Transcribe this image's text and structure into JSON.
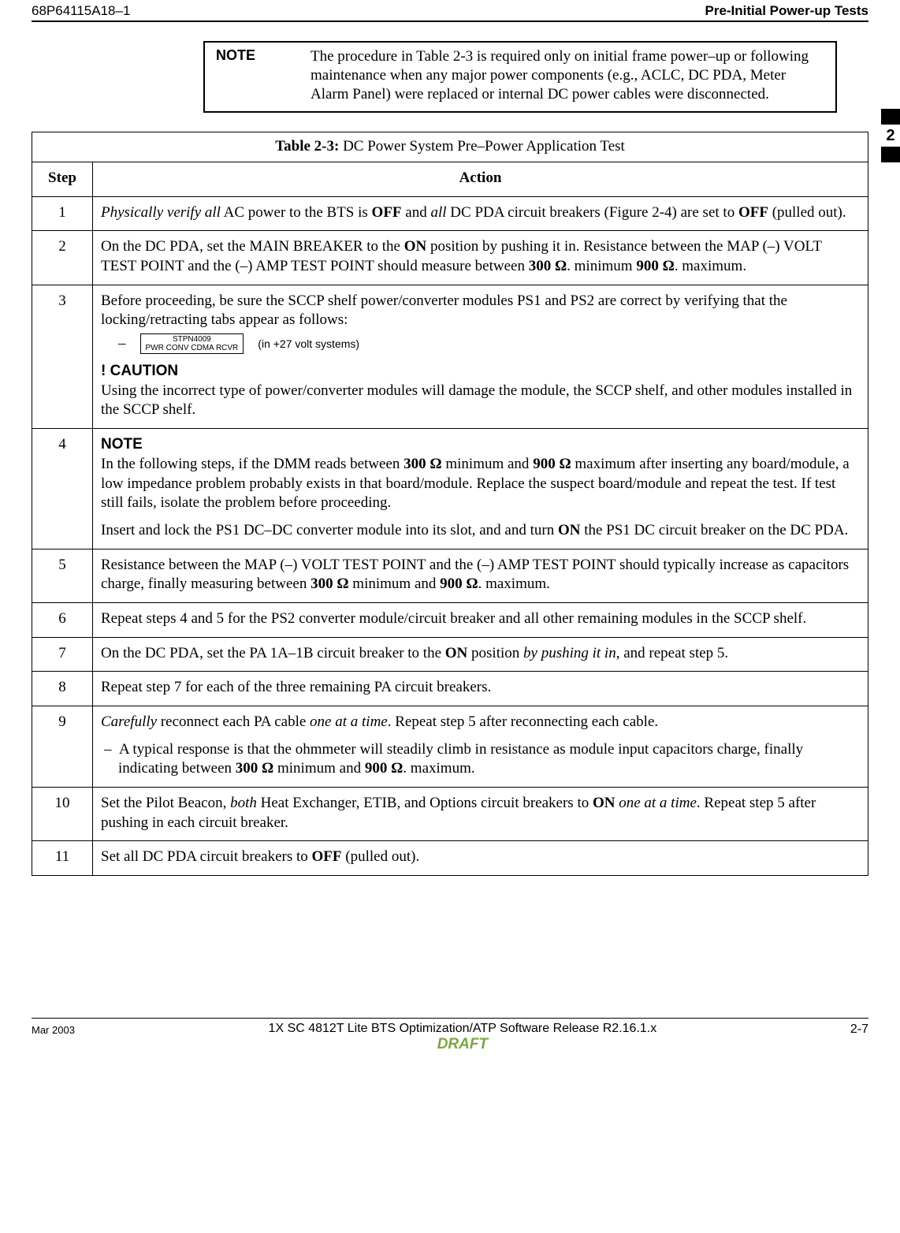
{
  "header": {
    "doc_number": "68P64115A18–1",
    "section_title": "Pre-Initial Power-up Tests"
  },
  "side_marker": "2",
  "note_box": {
    "label": "NOTE",
    "text_parts": [
      "The procedure in Table 2-3 is required only on initial frame power–up or following maintenance when any major power components (e.g., ACLC, DC PDA, Meter Alarm Panel) were replaced or internal DC power cables were disconnected."
    ]
  },
  "table": {
    "caption_bold": "Table 2-3:",
    "caption_rest": " DC Power System Pre–Power Application Test",
    "head_step": "Step",
    "head_action": "Action",
    "rows": {
      "r1": {
        "num": "1",
        "html": "<i>Physically verify all</i> AC power to the BTS is <b>OFF</b> and <i>all</i> DC PDA circuit breakers (Figure 2-4) are set to <b>OFF</b> (pulled out)."
      },
      "r2": {
        "num": "2",
        "html": "On the DC PDA, set the MAIN BREAKER to the <b>ON</b> position by pushing it in. Resistance between the MAP (–) VOLT TEST POINT and the (–) AMP TEST POINT should measure between <b>300 Ω</b>. minimum <b>900 Ω</b>. maximum."
      },
      "r3": {
        "num": "3",
        "intro": "Before proceeding, be sure the SCCP shelf power/converter modules PS1 and PS2 are correct by verifying that the locking/retracting tabs appear as follows:",
        "module_line1": "STPN4009",
        "module_line2": "PWR CONV   CDMA RCVR",
        "system_note": "(in +27 volt systems)",
        "caution_label": "! CAUTION",
        "caution_text": "Using the incorrect type of power/converter modules will damage the module, the SCCP shelf, and other modules installed in the SCCP shelf."
      },
      "r4": {
        "num": "4",
        "note_label": "NOTE",
        "note_html": "In the following steps, if the DMM reads between <b>300 Ω</b> minimum and <b>900 Ω</b>  maximum after inserting any board/module, a low impedance problem probably exists in that board/module. Replace the suspect board/module and repeat the test. If test still fails, isolate the problem before proceeding.",
        "body_html": "Insert and lock the PS1 DC–DC converter module into its slot, and and turn  <b>ON</b> the PS1 DC circuit breaker on the DC PDA."
      },
      "r5": {
        "num": "5",
        "html": "Resistance between the MAP (–) VOLT TEST POINT and the (–) AMP TEST POINT should typically increase as capacitors charge, finally measuring between <b>300 Ω</b> minimum and <b>900 Ω</b>. maximum."
      },
      "r6": {
        "num": "6",
        "html": "Repeat steps 4 and 5 for the PS2 converter module/circuit breaker and all other remaining modules in the SCCP shelf."
      },
      "r7": {
        "num": "7",
        "html": "On the DC PDA, set the PA 1A–1B circuit breaker to the <b>ON</b> position <i>by pushing it in</i>, and repeat step 5."
      },
      "r8": {
        "num": "8",
        "html": "Repeat step 7 for each of the three remaining PA circuit breakers."
      },
      "r9": {
        "num": "9",
        "line1_html": "<i>Carefully</i> reconnect each PA cable <i>one at a time</i>. Repeat step 5 after reconnecting each cable.",
        "bullet_html": "A typical response is that the ohmmeter will steadily climb in resistance as module input capacitors charge, finally indicating between <b>300 Ω</b> minimum and <b>900 Ω</b>. maximum."
      },
      "r10": {
        "num": "10",
        "html": "Set the Pilot Beacon, <i>both</i> Heat Exchanger, ETIB, and Options circuit breakers to <b>ON</b> <i>one at a time</i>. Repeat step 5 after pushing in each circuit breaker."
      },
      "r11": {
        "num": "11",
        "html": "Set all DC PDA circuit breakers to  <b>OFF</b> (pulled out)."
      }
    }
  },
  "footer": {
    "left": "Mar 2003",
    "center": "1X SC 4812T Lite BTS Optimization/ATP Software Release R2.16.1.x",
    "draft": "DRAFT",
    "right": "2-7"
  }
}
